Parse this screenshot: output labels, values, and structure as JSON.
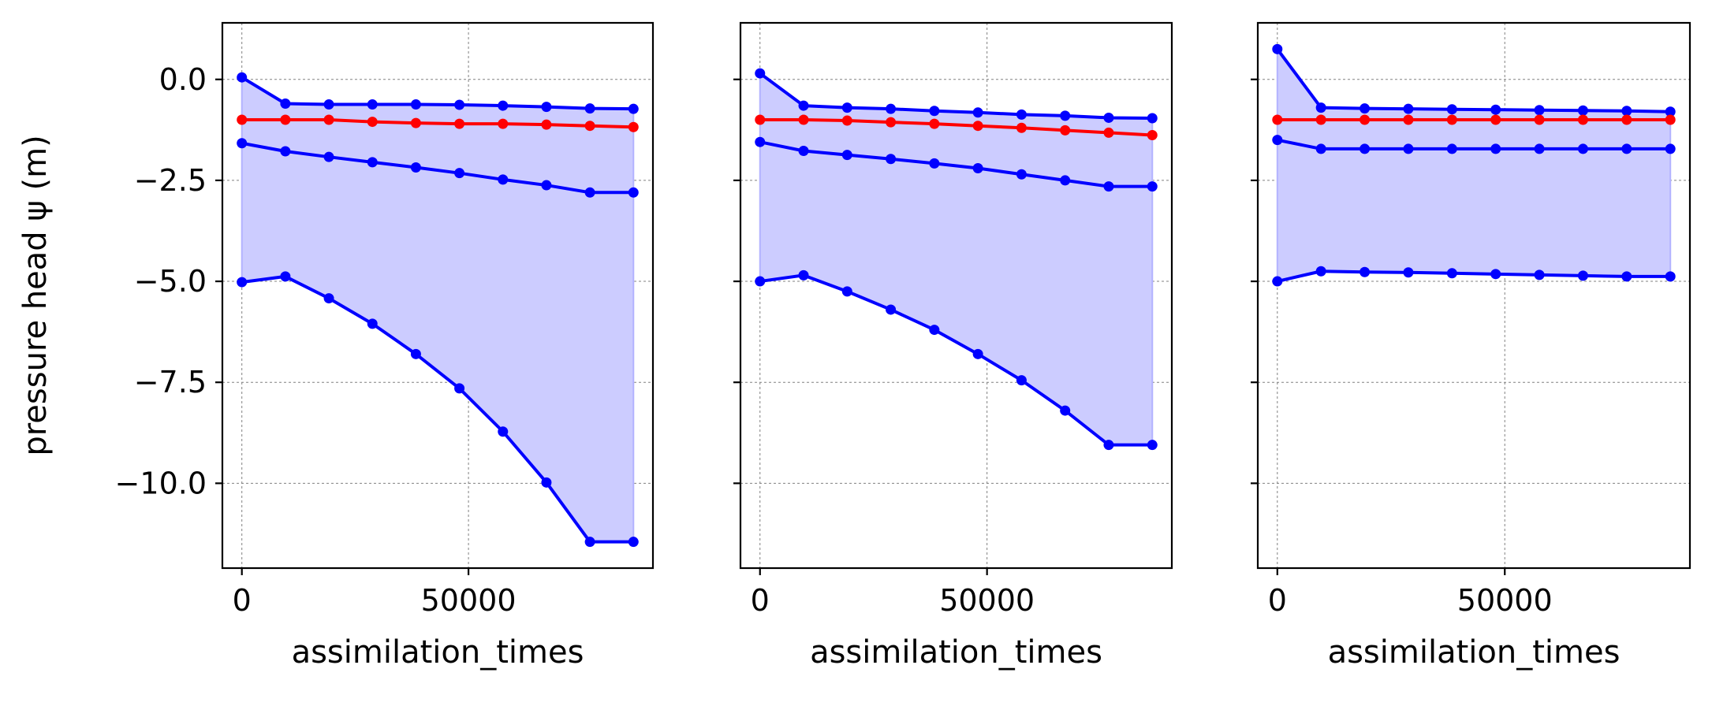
{
  "figure": {
    "ylabel": "pressure head ψ (m)"
  },
  "colors": {
    "ensemble_line": "#0000ff",
    "ensemble_fill": "#ccccff",
    "mean_line": "#ff0000",
    "grid": "#808080"
  },
  "chart_data": [
    {
      "type": "line",
      "xlabel": "assimilation_times",
      "ylabel": "pressure head ψ (m)",
      "xlim": [
        -4300,
        90700
      ],
      "ylim": [
        -12.1,
        1.4
      ],
      "xticks": [
        0,
        50000
      ],
      "xtick_labels": [
        "0",
        "50000"
      ],
      "yticks": [
        0.0,
        -2.5,
        -5.0,
        -7.5,
        -10.0
      ],
      "ytick_labels": [
        "0.0",
        "−2.5",
        "−5.0",
        "−7.5",
        "−10.0"
      ],
      "grid": true,
      "x": [
        0,
        9600,
        19200,
        28800,
        38400,
        48000,
        57600,
        67200,
        76800,
        86400
      ],
      "band": {
        "upper_series": "upper",
        "lower_series": "lower"
      },
      "series": [
        {
          "key": "upper",
          "color": "#0000ff",
          "values": [
            0.05,
            -0.6,
            -0.62,
            -0.62,
            -0.62,
            -0.63,
            -0.65,
            -0.68,
            -0.72,
            -0.73
          ]
        },
        {
          "key": "mean",
          "color": "#ff0000",
          "values": [
            -1.0,
            -1.0,
            -1.0,
            -1.05,
            -1.08,
            -1.1,
            -1.1,
            -1.12,
            -1.15,
            -1.18
          ]
        },
        {
          "key": "middle",
          "color": "#0000ff",
          "values": [
            -1.58,
            -1.78,
            -1.92,
            -2.05,
            -2.18,
            -2.32,
            -2.48,
            -2.62,
            -2.8,
            -2.8
          ]
        },
        {
          "key": "lower",
          "color": "#0000ff",
          "values": [
            -5.02,
            -4.88,
            -5.42,
            -6.05,
            -6.8,
            -7.65,
            -8.72,
            -9.98,
            -11.45,
            -11.45
          ]
        }
      ]
    },
    {
      "type": "line",
      "xlabel": "assimilation_times",
      "ylabel": "",
      "xlim": [
        -4300,
        90700
      ],
      "ylim": [
        -12.1,
        1.4
      ],
      "xticks": [
        0,
        50000
      ],
      "xtick_labels": [
        "0",
        "50000"
      ],
      "yticks": [
        0.0,
        -2.5,
        -5.0,
        -7.5,
        -10.0
      ],
      "ytick_labels": [],
      "grid": true,
      "x": [
        0,
        9600,
        19200,
        28800,
        38400,
        48000,
        57600,
        67200,
        76800,
        86400
      ],
      "band": {
        "upper_series": "upper",
        "lower_series": "lower"
      },
      "series": [
        {
          "key": "upper",
          "color": "#0000ff",
          "values": [
            0.15,
            -0.65,
            -0.7,
            -0.73,
            -0.78,
            -0.82,
            -0.87,
            -0.9,
            -0.95,
            -0.96
          ]
        },
        {
          "key": "mean",
          "color": "#ff0000",
          "values": [
            -1.0,
            -1.0,
            -1.02,
            -1.06,
            -1.1,
            -1.15,
            -1.2,
            -1.26,
            -1.32,
            -1.38
          ]
        },
        {
          "key": "middle",
          "color": "#0000ff",
          "values": [
            -1.55,
            -1.77,
            -1.87,
            -1.97,
            -2.08,
            -2.2,
            -2.35,
            -2.5,
            -2.65,
            -2.65
          ]
        },
        {
          "key": "lower",
          "color": "#0000ff",
          "values": [
            -5.0,
            -4.85,
            -5.25,
            -5.7,
            -6.2,
            -6.8,
            -7.45,
            -8.2,
            -9.05,
            -9.05
          ]
        }
      ]
    },
    {
      "type": "line",
      "xlabel": "assimilation_times",
      "ylabel": "",
      "xlim": [
        -4300,
        90700
      ],
      "ylim": [
        -12.1,
        1.4
      ],
      "xticks": [
        0,
        50000
      ],
      "xtick_labels": [
        "0",
        "50000"
      ],
      "yticks": [
        0.0,
        -2.5,
        -5.0,
        -7.5,
        -10.0
      ],
      "ytick_labels": [],
      "grid": true,
      "x": [
        0,
        9600,
        19200,
        28800,
        38400,
        48000,
        57600,
        67200,
        76800,
        86400
      ],
      "band": {
        "upper_series": "upper",
        "lower_series": "lower"
      },
      "series": [
        {
          "key": "upper",
          "color": "#0000ff",
          "values": [
            0.75,
            -0.7,
            -0.72,
            -0.73,
            -0.74,
            -0.75,
            -0.76,
            -0.77,
            -0.78,
            -0.8
          ]
        },
        {
          "key": "mean",
          "color": "#ff0000",
          "values": [
            -1.0,
            -1.0,
            -1.0,
            -1.0,
            -1.0,
            -1.0,
            -1.0,
            -1.0,
            -1.0,
            -1.0
          ]
        },
        {
          "key": "middle",
          "color": "#0000ff",
          "values": [
            -1.5,
            -1.72,
            -1.72,
            -1.72,
            -1.72,
            -1.72,
            -1.72,
            -1.72,
            -1.72,
            -1.72
          ]
        },
        {
          "key": "lower",
          "color": "#0000ff",
          "values": [
            -5.0,
            -4.75,
            -4.77,
            -4.78,
            -4.8,
            -4.82,
            -4.84,
            -4.86,
            -4.88,
            -4.88
          ]
        }
      ]
    }
  ]
}
